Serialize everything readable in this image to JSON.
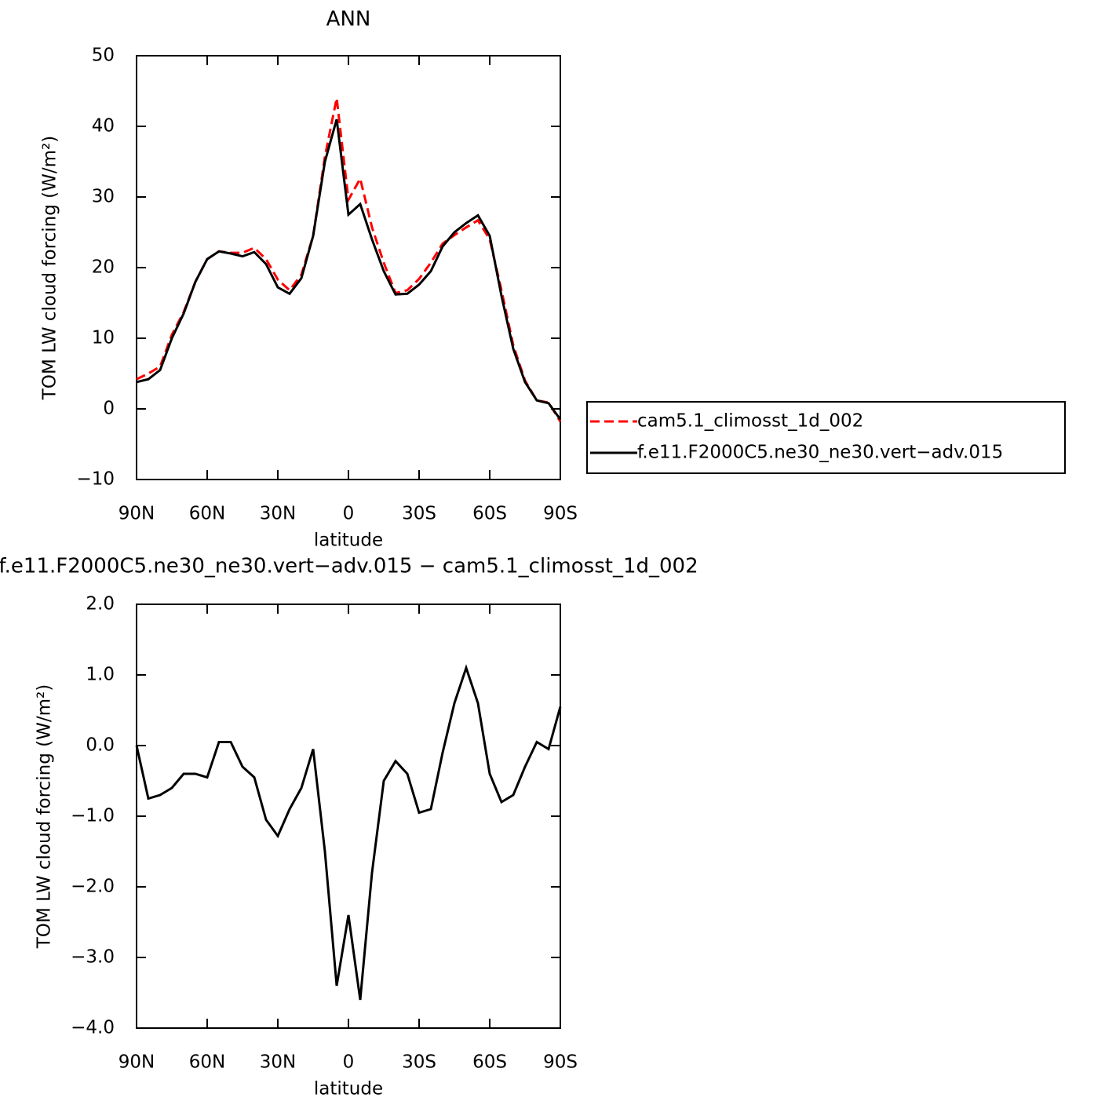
{
  "chart_data": [
    {
      "type": "line",
      "title": "ANN",
      "x_label": "latitude",
      "y_label": "TOM LW cloud forcing (W/m²)",
      "x": [
        90,
        85,
        80,
        75,
        70,
        65,
        60,
        55,
        50,
        45,
        40,
        35,
        30,
        25,
        20,
        15,
        10,
        5,
        0,
        -5,
        -10,
        -15,
        -20,
        -25,
        -30,
        -35,
        -40,
        -45,
        -50,
        -55,
        -60,
        -65,
        -70,
        -75,
        -80,
        -85,
        -90
      ],
      "series": [
        {
          "name": "cam5.1_climosst_1d_002",
          "color": "#ff0000",
          "line_style": "dashed",
          "values": [
            4.2,
            5,
            6,
            10.5,
            13.7,
            18,
            21.2,
            22.3,
            22.1,
            22.1,
            22.8,
            21.2,
            18.3,
            16.8,
            19,
            24.5,
            35.7,
            44,
            29.6,
            32.6,
            25.7,
            20.7,
            16.4,
            16.8,
            18.4,
            20.7,
            23.4,
            24.6,
            25.7,
            26.7,
            24,
            16.8,
            9,
            4,
            1.2,
            0.9,
            -1.8
          ]
        },
        {
          "name": "f.e11.F2000C5.ne30_ne30.vert−adv.015",
          "color": "#000000",
          "line_style": "solid",
          "values": [
            3.8,
            4.2,
            5.5,
            10,
            13.5,
            18,
            21.2,
            22.3,
            22,
            21.6,
            22.2,
            20.5,
            17.2,
            16.3,
            18.5,
            24.5,
            35,
            41,
            27.5,
            29,
            24,
            19.5,
            16.2,
            16.3,
            17.6,
            19.5,
            23,
            25,
            26.3,
            27.4,
            24.5,
            16,
            8.5,
            3.8,
            1.2,
            0.8,
            -1.5
          ]
        }
      ],
      "xlim": [
        90,
        -90
      ],
      "xticks": [
        {
          "value": 90,
          "label": "90N"
        },
        {
          "value": 60,
          "label": "60N"
        },
        {
          "value": 30,
          "label": "30N"
        },
        0,
        {
          "value": -30,
          "label": "30S"
        },
        {
          "value": -60,
          "label": "60S"
        },
        {
          "value": -90,
          "label": "90S"
        }
      ],
      "ylim": [
        -10,
        50
      ],
      "yticks": [
        {
          "value": -10,
          "label": "−10"
        },
        0,
        10,
        20,
        30,
        40,
        50
      ],
      "legend": "right"
    },
    {
      "type": "line",
      "title": "f.e11.F2000C5.ne30_ne30.vert−adv.015 − cam5.1_climosst_1d_002",
      "x_label": "latitude",
      "y_label": "TOM LW cloud forcing (W/m²)",
      "x": [
        90,
        85,
        80,
        75,
        70,
        65,
        60,
        55,
        50,
        45,
        40,
        35,
        30,
        25,
        20,
        15,
        10,
        5,
        0,
        -5,
        -10,
        -15,
        -20,
        -25,
        -30,
        -35,
        -40,
        -45,
        -50,
        -55,
        -60,
        -65,
        -70,
        -75,
        -80,
        -85,
        -90
      ],
      "series": [
        {
          "color": "#000000",
          "line_style": "solid",
          "values": [
            0,
            -0.75,
            -0.7,
            -0.6,
            -0.4,
            -0.4,
            -0.45,
            0.05,
            0.05,
            -0.3,
            -0.45,
            -1.05,
            -1.28,
            -0.9,
            -0.6,
            -0.05,
            -1.5,
            -3.4,
            -2.4,
            -3.6,
            -1.8,
            -0.5,
            -0.22,
            -0.4,
            -0.95,
            -0.9,
            -0.1,
            0.6,
            1.1,
            0.6,
            -0.4,
            -0.8,
            -0.7,
            -0.3,
            0.05,
            -0.05,
            0.55
          ]
        }
      ],
      "xlim": [
        90,
        -90
      ],
      "xticks": [
        {
          "value": 90,
          "label": "90N"
        },
        {
          "value": 60,
          "label": "60N"
        },
        {
          "value": 30,
          "label": "30N"
        },
        0,
        {
          "value": -30,
          "label": "30S"
        },
        {
          "value": -60,
          "label": "60S"
        },
        {
          "value": -90,
          "label": "90S"
        }
      ],
      "ylim": [
        -4,
        2
      ],
      "yticks": [
        {
          "value": -4,
          "label": "−4.0"
        },
        {
          "value": -3,
          "label": "−3.0"
        },
        {
          "value": -2,
          "label": "−2.0"
        },
        {
          "value": -1,
          "label": "−1.0"
        },
        {
          "value": 0,
          "label": "0.0"
        },
        {
          "value": 1,
          "label": "1.0"
        },
        {
          "value": 2,
          "label": "2.0"
        }
      ]
    }
  ]
}
